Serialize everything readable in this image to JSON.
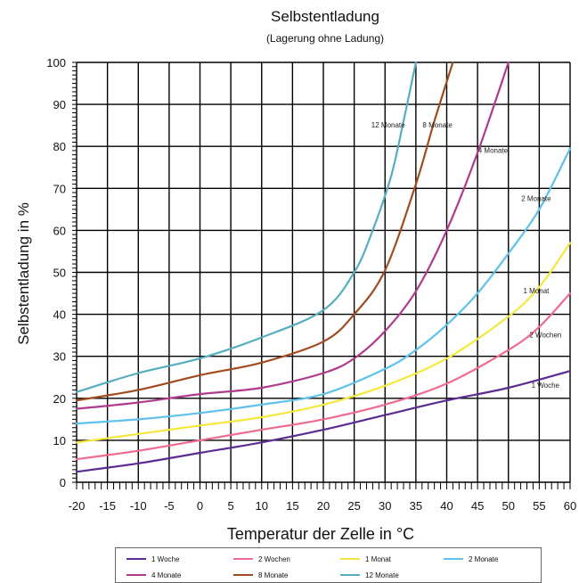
{
  "chart_data": {
    "type": "line",
    "title": "Selbstentladung",
    "subtitle": "(Lagerung ohne Ladung)",
    "xlabel": "Temperatur der Zelle in °C",
    "ylabel": "Selbstentladung in %",
    "xlim": [
      -20,
      60
    ],
    "ylim": [
      0,
      100
    ],
    "xticks": [
      "-20",
      "-15",
      "-10",
      "-5",
      "0",
      "5",
      "10",
      "15",
      "20",
      "25",
      "30",
      "35",
      "40",
      "45",
      "50",
      "55",
      "60"
    ],
    "yticks": [
      "0",
      "10",
      "20",
      "30",
      "40",
      "50",
      "60",
      "70",
      "80",
      "90",
      "100"
    ],
    "grid": true,
    "legend_position": "bottom",
    "series": [
      {
        "name": "1 Woche",
        "color": "#5b2d91",
        "label": "1 Woche",
        "x": [
          -20,
          -10,
          0,
          10,
          20,
          30,
          40,
          50,
          60
        ],
        "y": [
          2.5,
          4.5,
          7,
          9.5,
          12.5,
          16,
          19.5,
          22.5,
          26.5
        ]
      },
      {
        "name": "2 Wochen",
        "color": "#ef6b8f",
        "label": "2 Wochen",
        "x": [
          -20,
          -10,
          0,
          10,
          20,
          30,
          40,
          50,
          55,
          60
        ],
        "y": [
          5.5,
          7.5,
          10,
          12.5,
          15,
          18.5,
          23.5,
          31.5,
          37,
          45
        ]
      },
      {
        "name": "1 Monat",
        "color": "#f5e83c",
        "label": "1 Monat",
        "x": [
          -20,
          -10,
          0,
          10,
          20,
          30,
          40,
          50,
          55,
          60
        ],
        "y": [
          9.5,
          11.5,
          13.5,
          15.5,
          18.5,
          23,
          29.5,
          39.5,
          46.5,
          57
        ]
      },
      {
        "name": "2 Monate",
        "color": "#5fc2ea",
        "label": "2 Monate",
        "x": [
          -20,
          -10,
          0,
          10,
          20,
          30,
          35,
          40,
          45,
          50,
          55,
          60
        ],
        "y": [
          14,
          15,
          16.5,
          18.5,
          21,
          27,
          31.5,
          37.5,
          45,
          54.5,
          65,
          79.5
        ]
      },
      {
        "name": "4 Monate",
        "color": "#b03a8c",
        "label": "4 Monate",
        "x": [
          -20,
          -10,
          0,
          10,
          20,
          25,
          30,
          35,
          40,
          45,
          50
        ],
        "y": [
          17.5,
          19,
          21,
          22.5,
          26,
          29.5,
          36,
          45.5,
          60,
          78.5,
          100
        ]
      },
      {
        "name": "8 Monate",
        "color": "#a24b1f",
        "label": "8 Monate",
        "x": [
          -20,
          -10,
          0,
          10,
          20,
          25,
          30,
          35,
          38,
          41
        ],
        "y": [
          19.5,
          22,
          25.5,
          28.5,
          33.5,
          40,
          50.5,
          71,
          86,
          100
        ]
      },
      {
        "name": "12 Monate",
        "color": "#55aec0",
        "label": "12 Monate",
        "x": [
          -20,
          -10,
          0,
          10,
          20,
          25,
          28,
          31,
          33,
          35
        ],
        "y": [
          21.5,
          26,
          29.5,
          34.5,
          41,
          50,
          60,
          73,
          86,
          100
        ]
      }
    ],
    "curve_labels": [
      {
        "text": "12 Monate",
        "x": 30.5,
        "y": 84.5
      },
      {
        "text": "8 Monate",
        "x": 38.5,
        "y": 84.5
      },
      {
        "text": "4 Monate",
        "x": 47.5,
        "y": 78.5
      },
      {
        "text": "2 Monate",
        "x": 54.5,
        "y": 67
      },
      {
        "text": "1 Monat",
        "x": 54.5,
        "y": 45
      },
      {
        "text": "2 Wochen",
        "x": 56,
        "y": 34.5
      },
      {
        "text": "1 Woche",
        "x": 56,
        "y": 22.5
      }
    ]
  }
}
